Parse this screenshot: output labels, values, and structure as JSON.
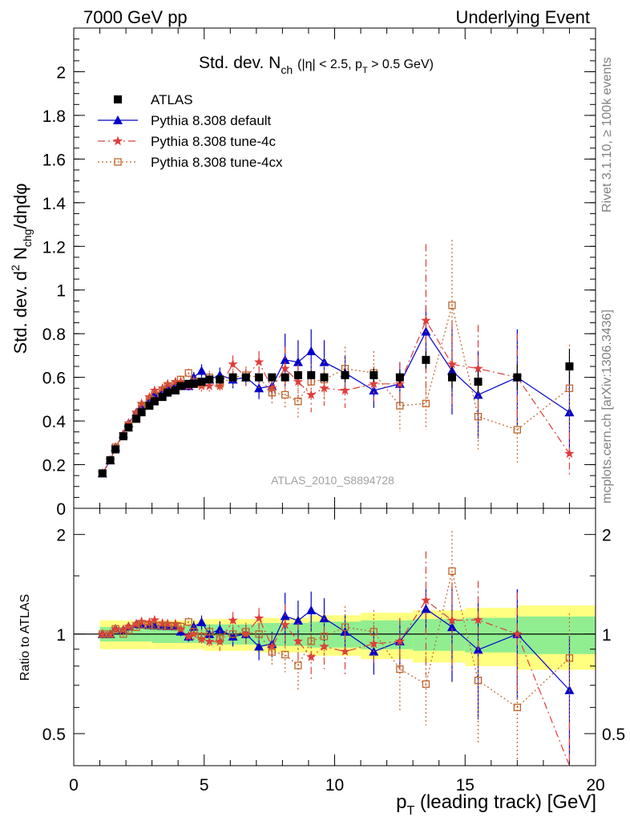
{
  "header": {
    "left": "7000 GeV pp",
    "right": "Underlying Event"
  },
  "side_labels": {
    "rivet": "Rivet 3.1.10, ≥ 100k events",
    "mcplots": "mcplots.cern.ch [arXiv:1306.3436]"
  },
  "analysis_tag": "ATLAS_2010_S8894728",
  "colors": {
    "atlas": "#000000",
    "default": "#0000cc",
    "tune4c": "#e03c3c",
    "tune4cx": "#c0642a",
    "band_inner": "#90ee90",
    "band_outer": "#ffff80"
  },
  "chart_data": [
    {
      "type": "scatter",
      "title_main": "Std. dev. N",
      "title_sub": "ch",
      "title_cut": "(|η| < 2.5, p",
      "title_cut_sub": "T",
      "title_cut_end": " > 0.5 GeV)",
      "ylabel_parts": [
        "Std. dev. d",
        "2",
        " N",
        "chg",
        "/dηdφ"
      ],
      "xlim": [
        0,
        20
      ],
      "ylim": [
        0,
        2.2
      ],
      "yticks": [
        0,
        0.2,
        0.4,
        0.6,
        0.8,
        1,
        1.2,
        1.4,
        1.6,
        1.8,
        2
      ],
      "ytick_labels": [
        "0",
        "0.2",
        "0.4",
        "0.6",
        "0.8",
        "1",
        "1.2",
        "1.4",
        "1.6",
        "1.8",
        "2"
      ],
      "legend": [
        "ATLAS",
        "Pythia 8.308 default",
        "Pythia 8.308 tune-4c",
        "Pythia 8.308 tune-4cx"
      ],
      "legend_position": "top-left",
      "series": [
        {
          "name": "ATLAS",
          "marker": "square",
          "x": [
            1.1,
            1.4,
            1.6,
            1.9,
            2.1,
            2.4,
            2.6,
            2.9,
            3.1,
            3.4,
            3.6,
            3.9,
            4.1,
            4.4,
            4.6,
            4.9,
            5.2,
            5.6,
            6.1,
            6.6,
            7.1,
            7.6,
            8.1,
            8.6,
            9.1,
            9.6,
            10.4,
            11.5,
            12.5,
            13.5,
            14.5,
            15.5,
            17,
            19
          ],
          "y": [
            0.16,
            0.22,
            0.27,
            0.33,
            0.37,
            0.41,
            0.44,
            0.47,
            0.49,
            0.51,
            0.53,
            0.54,
            0.56,
            0.57,
            0.57,
            0.58,
            0.59,
            0.59,
            0.6,
            0.6,
            0.6,
            0.6,
            0.6,
            0.61,
            0.61,
            0.6,
            0.61,
            0.61,
            0.6,
            0.68,
            0.6,
            0.58,
            0.6,
            0.65
          ],
          "err": [
            0.005,
            0.005,
            0.005,
            0.006,
            0.006,
            0.006,
            0.006,
            0.007,
            0.007,
            0.007,
            0.008,
            0.008,
            0.008,
            0.009,
            0.01,
            0.01,
            0.01,
            0.01,
            0.012,
            0.012,
            0.012,
            0.015,
            0.015,
            0.018,
            0.02,
            0.02,
            0.03,
            0.03,
            0.03,
            0.04,
            0.05,
            0.05,
            0.06,
            0.08
          ]
        },
        {
          "name": "Pythia 8.308 default",
          "marker": "triangle",
          "x": [
            1.1,
            1.4,
            1.6,
            1.9,
            2.1,
            2.4,
            2.6,
            2.9,
            3.1,
            3.4,
            3.6,
            3.9,
            4.1,
            4.4,
            4.6,
            4.9,
            5.2,
            5.6,
            6.1,
            6.6,
            7.1,
            7.6,
            8.1,
            8.6,
            9.1,
            9.6,
            10.4,
            11.5,
            12.5,
            13.5,
            14.5,
            15.5,
            17,
            19
          ],
          "y": [
            0.16,
            0.22,
            0.28,
            0.34,
            0.39,
            0.44,
            0.47,
            0.5,
            0.52,
            0.54,
            0.56,
            0.57,
            0.57,
            0.56,
            0.6,
            0.63,
            0.59,
            0.61,
            0.59,
            0.6,
            0.55,
            0.56,
            0.68,
            0.67,
            0.72,
            0.67,
            0.62,
            0.54,
            0.57,
            0.81,
            0.63,
            0.52,
            0.6,
            0.44
          ],
          "err": [
            0.005,
            0.006,
            0.007,
            0.008,
            0.009,
            0.01,
            0.011,
            0.012,
            0.013,
            0.014,
            0.015,
            0.016,
            0.018,
            0.02,
            0.025,
            0.03,
            0.03,
            0.035,
            0.04,
            0.04,
            0.05,
            0.05,
            0.12,
            0.1,
            0.1,
            0.1,
            0.08,
            0.08,
            0.1,
            0.12,
            0.2,
            0.2,
            0.22,
            0.2
          ]
        },
        {
          "name": "Pythia 8.308 tune-4c",
          "marker": "star",
          "x": [
            1.1,
            1.4,
            1.6,
            1.9,
            2.1,
            2.4,
            2.6,
            2.9,
            3.1,
            3.4,
            3.6,
            3.9,
            4.1,
            4.4,
            4.6,
            4.9,
            5.2,
            5.6,
            6.1,
            6.6,
            7.1,
            7.6,
            8.1,
            8.6,
            9.1,
            9.6,
            10.4,
            11.5,
            12.5,
            13.5,
            14.5,
            15.5,
            17,
            19
          ],
          "y": [
            0.16,
            0.22,
            0.28,
            0.34,
            0.39,
            0.44,
            0.48,
            0.51,
            0.54,
            0.55,
            0.57,
            0.58,
            0.58,
            0.56,
            0.57,
            0.56,
            0.56,
            0.56,
            0.66,
            0.6,
            0.67,
            0.55,
            0.64,
            0.58,
            0.52,
            0.55,
            0.54,
            0.57,
            0.57,
            0.86,
            0.66,
            0.64,
            0.6,
            0.25
          ],
          "err": [
            0.005,
            0.006,
            0.007,
            0.008,
            0.009,
            0.01,
            0.011,
            0.012,
            0.013,
            0.014,
            0.015,
            0.016,
            0.018,
            0.02,
            0.025,
            0.03,
            0.03,
            0.035,
            0.04,
            0.04,
            0.05,
            0.05,
            0.1,
            0.08,
            0.08,
            0.08,
            0.08,
            0.08,
            0.1,
            0.35,
            0.2,
            0.2,
            0.2,
            0.1
          ]
        },
        {
          "name": "Pythia 8.308 tune-4cx",
          "marker": "open-square",
          "x": [
            1.1,
            1.4,
            1.6,
            1.9,
            2.1,
            2.4,
            2.6,
            2.9,
            3.1,
            3.4,
            3.6,
            3.9,
            4.1,
            4.4,
            4.6,
            4.9,
            5.2,
            5.6,
            6.1,
            6.6,
            7.1,
            7.6,
            8.1,
            8.6,
            9.1,
            9.6,
            10.4,
            11.5,
            12.5,
            13.5,
            14.5,
            15.5,
            17,
            19
          ],
          "y": [
            0.16,
            0.22,
            0.28,
            0.33,
            0.38,
            0.43,
            0.47,
            0.5,
            0.52,
            0.54,
            0.56,
            0.57,
            0.59,
            0.62,
            0.58,
            0.57,
            0.6,
            0.57,
            0.6,
            0.61,
            0.6,
            0.53,
            0.52,
            0.49,
            0.58,
            0.59,
            0.64,
            0.62,
            0.47,
            0.48,
            0.93,
            0.42,
            0.36,
            0.55
          ],
          "err": [
            0.005,
            0.006,
            0.007,
            0.008,
            0.009,
            0.01,
            0.011,
            0.012,
            0.013,
            0.014,
            0.015,
            0.016,
            0.018,
            0.02,
            0.025,
            0.03,
            0.03,
            0.035,
            0.04,
            0.04,
            0.05,
            0.05,
            0.06,
            0.08,
            0.08,
            0.1,
            0.1,
            0.1,
            0.12,
            0.12,
            0.3,
            0.15,
            0.15,
            0.2
          ]
        }
      ]
    },
    {
      "type": "scatter",
      "ylabel": "Ratio to ATLAS",
      "xlabel": "p",
      "xlabel_sub": "T",
      "xlabel_end": " (leading track) [GeV]",
      "xlim": [
        0,
        20
      ],
      "ylim": [
        0.4,
        2.4
      ],
      "log_y": true,
      "xticks": [
        0,
        5,
        10,
        15,
        20
      ],
      "xtick_labels": [
        "0",
        "5",
        "10",
        "15",
        "20"
      ],
      "yticks": [
        0.5,
        1,
        2
      ],
      "ytick_labels": [
        "0.5",
        "1",
        "2"
      ],
      "band_edges": [
        1,
        3,
        5,
        7,
        9,
        11,
        13,
        15,
        17,
        20
      ],
      "band_inner": [
        0.05,
        0.06,
        0.07,
        0.08,
        0.09,
        0.1,
        0.11,
        0.12,
        0.13
      ],
      "band_outer": [
        0.1,
        0.1,
        0.11,
        0.12,
        0.14,
        0.16,
        0.18,
        0.2,
        0.22
      ]
    }
  ]
}
